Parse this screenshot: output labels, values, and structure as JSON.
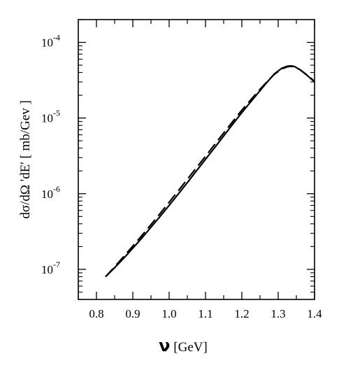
{
  "chart_data": {
    "type": "line",
    "title": "",
    "xlabel_symbol": "ν",
    "xlabel_unit": " [GeV]",
    "ylabel": "dσ/dΩ 'dE' [ mb/Gev ]",
    "xlim": [
      0.75,
      1.4
    ],
    "ylim": [
      4e-08,
      0.0002
    ],
    "yscale": "log",
    "grid": false,
    "legend": "none",
    "x_ticks": [
      "0.8",
      "0.9",
      "1.0",
      "1.1",
      "1.2",
      "1.3",
      "1.4"
    ],
    "x_tick_values": [
      0.8,
      0.9,
      1.0,
      1.1,
      1.2,
      1.3,
      1.4
    ],
    "y_ticks": [
      {
        "base": "10",
        "exp": "-7",
        "value": 1e-07
      },
      {
        "base": "10",
        "exp": "-6",
        "value": 1e-06
      },
      {
        "base": "10",
        "exp": "-5",
        "value": 1e-05
      },
      {
        "base": "10",
        "exp": "-4",
        "value": 0.0001
      }
    ],
    "series": [
      {
        "style": "solid",
        "x": [
          0.825,
          0.85,
          0.875,
          0.9,
          0.925,
          0.95,
          0.975,
          1.0,
          1.025,
          1.05,
          1.075,
          1.1,
          1.125,
          1.15,
          1.175,
          1.2,
          1.225,
          1.25,
          1.27,
          1.29,
          1.31,
          1.325,
          1.335,
          1.345,
          1.36,
          1.38,
          1.4
        ],
        "y": [
          8e-08,
          1.05e-07,
          1.4e-07,
          1.9e-07,
          2.6e-07,
          3.6e-07,
          5e-07,
          7e-07,
          9.9e-07,
          1.4e-06,
          2e-06,
          2.85e-06,
          4.05e-06,
          5.8e-06,
          8.3e-06,
          1.18e-05,
          1.65e-05,
          2.3e-05,
          3e-05,
          3.85e-05,
          4.55e-05,
          4.85e-05,
          4.9e-05,
          4.8e-05,
          4.35e-05,
          3.65e-05,
          3e-05
        ]
      },
      {
        "style": "dashed",
        "x": [
          0.825,
          0.85,
          0.875,
          0.9,
          0.925,
          0.95,
          0.975,
          1.0,
          1.025,
          1.05,
          1.075,
          1.1,
          1.125,
          1.15,
          1.175,
          1.2,
          1.225,
          1.25,
          1.27,
          1.29,
          1.31,
          1.325,
          1.335,
          1.345,
          1.36,
          1.38,
          1.4
        ],
        "y": [
          8e-08,
          1.08e-07,
          1.48e-07,
          2.03e-07,
          2.8e-07,
          3.9e-07,
          5.45e-07,
          7.7e-07,
          1.09e-06,
          1.55e-06,
          2.2e-06,
          3.12e-06,
          4.45e-06,
          6.35e-06,
          9e-06,
          1.27e-05,
          1.75e-05,
          2.4e-05,
          3.05e-05,
          3.8e-05,
          4.45e-05,
          4.75e-05,
          4.82e-05,
          4.75e-05,
          4.35e-05,
          3.7e-05,
          3.05e-05
        ]
      }
    ]
  }
}
